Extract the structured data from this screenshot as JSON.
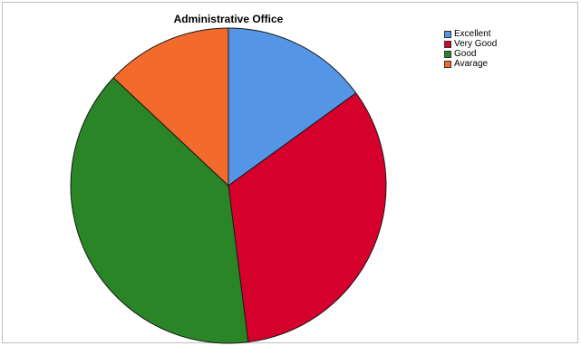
{
  "chart_data": {
    "type": "pie",
    "title": "Administrative Office",
    "categories": [
      "Excellent",
      "Very Good",
      "Good",
      "Avarage"
    ],
    "values": [
      15,
      33,
      39,
      13
    ],
    "colors": [
      "#5595e6",
      "#d6002d",
      "#2a8526",
      "#f26a2c"
    ],
    "start_angle_deg": 0,
    "direction": "clockwise",
    "legend_position": "top-right",
    "grid": false
  }
}
